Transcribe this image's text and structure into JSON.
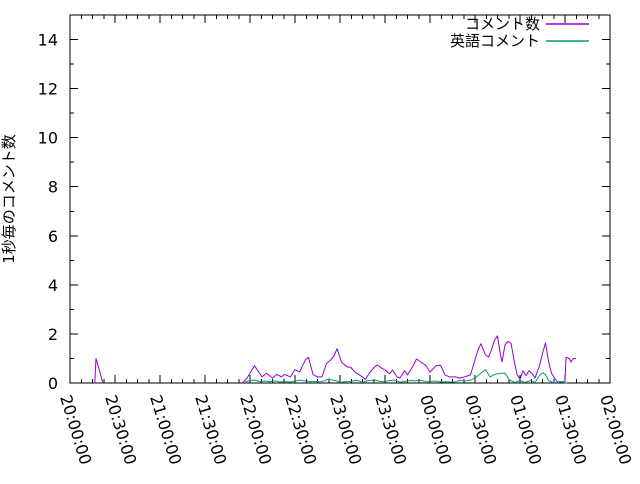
{
  "chart_data": {
    "type": "line",
    "title": "",
    "ylabel": "1秒毎のコメント数",
    "xlabel": "",
    "grid": false,
    "legend_position": "top-right-inside",
    "background_color": "#ffffff",
    "border_color": "#000000",
    "ylim": [
      0,
      15
    ],
    "y_ticks": [
      0,
      2,
      4,
      6,
      8,
      10,
      12,
      14
    ],
    "x_encoding": "minutes_after_20:00:00",
    "xlim_minutes": [
      0,
      360
    ],
    "x_tick_minutes": [
      0,
      30,
      60,
      90,
      120,
      150,
      180,
      210,
      240,
      270,
      300,
      330,
      360
    ],
    "x_tick_labels": [
      "20:00:00",
      "20:30:00",
      "21:00:00",
      "21:30:00",
      "22:00:00",
      "22:30:00",
      "23:00:00",
      "23:30:00",
      "00:00:00",
      "00:30:00",
      "01:00:00",
      "01:30:00",
      "02:00:00"
    ],
    "x_tick_rotation_deg": 73,
    "series": [
      {
        "name": "コメント数",
        "color": "#9400d3",
        "segments": [
          [
            [
              16.5,
              0
            ],
            [
              17.3,
              1.0
            ],
            [
              22,
              0
            ]
          ],
          [
            [
              115,
              0
            ],
            [
              118,
              0.2
            ],
            [
              123,
              0.7
            ],
            [
              128,
              0.25
            ],
            [
              131,
              0.4
            ],
            [
              135,
              0.2
            ],
            [
              138,
              0.35
            ],
            [
              141,
              0.25
            ],
            [
              143,
              0.35
            ],
            [
              147,
              0.25
            ],
            [
              150,
              0.55
            ],
            [
              153,
              0.45
            ],
            [
              157,
              0.95
            ],
            [
              159,
              1.05
            ],
            [
              162,
              0.35
            ],
            [
              165,
              0.25
            ],
            [
              168,
              0.25
            ],
            [
              171,
              0.8
            ],
            [
              174,
              0.95
            ],
            [
              176,
              1.1
            ],
            [
              178,
              1.4
            ],
            [
              181,
              0.85
            ],
            [
              185,
              0.65
            ],
            [
              187,
              0.65
            ],
            [
              190,
              0.45
            ],
            [
              193,
              0.33
            ],
            [
              197,
              0.15
            ],
            [
              200,
              0.45
            ],
            [
              203,
              0.65
            ],
            [
              205,
              0.73
            ],
            [
              208,
              0.6
            ],
            [
              210,
              0.53
            ],
            [
              213,
              0.37
            ],
            [
              215,
              0.53
            ],
            [
              218,
              0.25
            ],
            [
              220,
              0.2
            ],
            [
              223,
              0.5
            ],
            [
              225,
              0.33
            ],
            [
              229,
              0.73
            ],
            [
              231,
              0.98
            ],
            [
              234,
              0.85
            ],
            [
              237,
              0.73
            ],
            [
              240,
              0.45
            ],
            [
              244,
              0.7
            ],
            [
              247,
              0.73
            ],
            [
              250,
              0.33
            ],
            [
              253,
              0.25
            ],
            [
              257,
              0.25
            ],
            [
              260,
              0.2
            ],
            [
              263,
              0.25
            ],
            [
              267,
              0.33
            ],
            [
              270,
              0.95
            ],
            [
              272,
              1.35
            ],
            [
              274,
              1.6
            ],
            [
              277,
              1.14
            ],
            [
              279,
              1.06
            ],
            [
              281,
              1.35
            ],
            [
              283,
              1.75
            ],
            [
              285,
              1.92
            ],
            [
              287,
              1.14
            ],
            [
              288,
              0.86
            ],
            [
              290,
              1.55
            ],
            [
              292,
              1.7
            ],
            [
              294,
              1.63
            ],
            [
              296,
              0.94
            ],
            [
              298,
              0.35
            ],
            [
              300,
              0.15
            ],
            [
              302,
              0.5
            ],
            [
              304,
              0.3
            ],
            [
              306,
              0.5
            ],
            [
              308,
              0.4
            ],
            [
              310,
              0.2
            ],
            [
              313,
              0.7
            ],
            [
              315,
              1.2
            ],
            [
              317,
              1.63
            ],
            [
              319,
              0.9
            ],
            [
              321,
              0.4
            ],
            [
              323,
              0.2
            ],
            [
              325,
              0.05
            ],
            [
              328,
              0.05
            ],
            [
              330,
              0.05
            ],
            [
              330.7,
              1.05
            ],
            [
              333,
              1.0
            ],
            [
              334,
              0.85
            ],
            [
              335.5,
              1.0
            ],
            [
              337,
              1.0
            ]
          ]
        ]
      },
      {
        "name": "英語コメント",
        "color": "#009e73",
        "segments": [
          [
            [
              117,
              0.05
            ],
            [
              120,
              0.1
            ],
            [
              123,
              0.12
            ],
            [
              127,
              0.05
            ],
            [
              130,
              0.08
            ],
            [
              133,
              0.05
            ],
            [
              137,
              0.08
            ],
            [
              140,
              0.04
            ],
            [
              143,
              0.06
            ],
            [
              147,
              0.04
            ],
            [
              150,
              0.08
            ],
            [
              153,
              0.12
            ],
            [
              157,
              0.08
            ],
            [
              160,
              0.05
            ],
            [
              163,
              0.06
            ],
            [
              167,
              0.05
            ],
            [
              170,
              0.1
            ],
            [
              173,
              0.17
            ],
            [
              175,
              0.12
            ],
            [
              178,
              0.08
            ],
            [
              180,
              0.02
            ],
            [
              183,
              0.05
            ],
            [
              187,
              0.06
            ],
            [
              190,
              0.1
            ],
            [
              191,
              0.12
            ],
            [
              195,
              0.03
            ],
            [
              199,
              0.1
            ],
            [
              203,
              0.12
            ],
            [
              207,
              0.06
            ],
            [
              210,
              0.05
            ],
            [
              213,
              0.1
            ],
            [
              217,
              0.12
            ],
            [
              220,
              0.03
            ],
            [
              223,
              0.06
            ],
            [
              227,
              0.1
            ],
            [
              230,
              0.08
            ],
            [
              233,
              0.12
            ],
            [
              237,
              0.06
            ],
            [
              239,
              0.05
            ],
            [
              243,
              0.08
            ],
            [
              247,
              0.04
            ],
            [
              250,
              0.05
            ],
            [
              253,
              0.04
            ],
            [
              257,
              0.05
            ],
            [
              260,
              0.1
            ],
            [
              263,
              0.08
            ],
            [
              267,
              0.12
            ],
            [
              270,
              0.2
            ],
            [
              273,
              0.35
            ],
            [
              277,
              0.55
            ],
            [
              280,
              0.25
            ],
            [
              283,
              0.35
            ],
            [
              287,
              0.4
            ],
            [
              290,
              0.4
            ],
            [
              293,
              0.12
            ],
            [
              297,
              0.02
            ],
            [
              300,
              0.12
            ],
            [
              303,
              0.02
            ],
            [
              307,
              0.1
            ],
            [
              310,
              0.02
            ],
            [
              313,
              0.3
            ],
            [
              315,
              0.42
            ],
            [
              317,
              0.35
            ],
            [
              319,
              0.1
            ],
            [
              322,
              0.02
            ],
            [
              325,
              0.02
            ],
            [
              327,
              0.05
            ],
            [
              331,
              0
            ]
          ]
        ]
      }
    ]
  }
}
